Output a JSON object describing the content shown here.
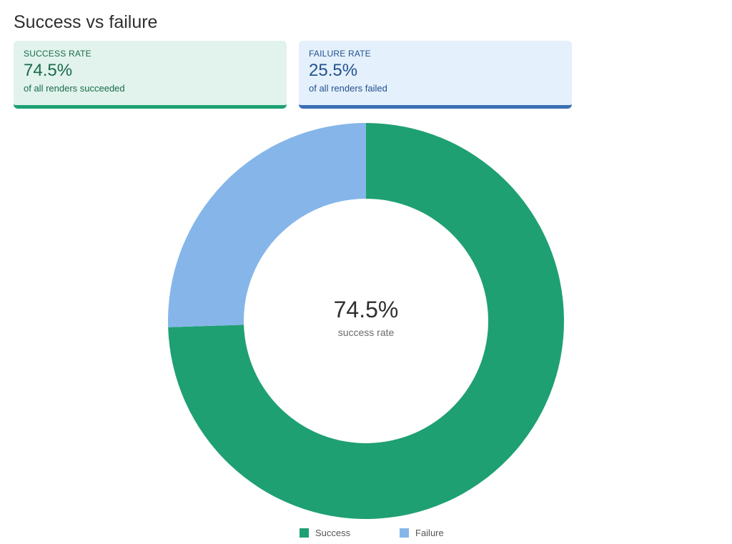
{
  "page": {
    "title": "Success vs failure"
  },
  "cards": {
    "success": {
      "label": "SUCCESS RATE",
      "value": "74.5%",
      "sub": "of all renders succeeded"
    },
    "failure": {
      "label": "FAILURE RATE",
      "value": "25.5%",
      "sub": "of all renders failed"
    }
  },
  "center": {
    "value": "74.5%",
    "caption": "success rate"
  },
  "colors": {
    "success": "#1fa072",
    "failure": "#86b6e9"
  },
  "chart_data": {
    "type": "pie",
    "variant": "donut",
    "categories": [
      "Success",
      "Failure"
    ],
    "values": [
      74.5,
      25.5
    ],
    "unit": "%",
    "colors": [
      "#1fa072",
      "#86b6e9"
    ],
    "legend_position": "bottom",
    "legend": [
      "Success",
      "Failure"
    ]
  }
}
